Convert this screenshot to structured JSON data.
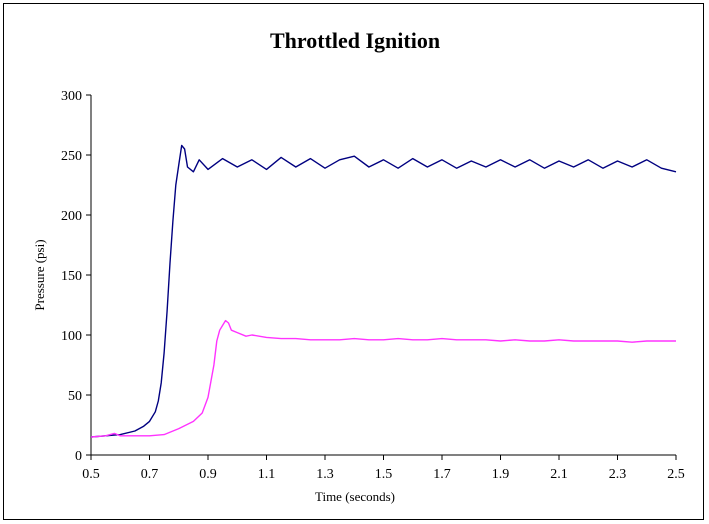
{
  "chart_data": {
    "type": "line",
    "title": "Throttled Ignition",
    "xlabel": "Time (seconds)",
    "ylabel": "Pressure (psi)",
    "xlim": [
      0.5,
      2.5
    ],
    "ylim": [
      0,
      300
    ],
    "xticks": [
      "0.5",
      "0.7",
      "0.9",
      "1.1",
      "1.3",
      "1.5",
      "1.7",
      "1.9",
      "2.1",
      "2.3",
      "2.5"
    ],
    "yticks": [
      "0",
      "50",
      "100",
      "150",
      "200",
      "250",
      "300"
    ],
    "grid": false,
    "legend": "none",
    "series": [
      {
        "color": "#000080",
        "points": [
          [
            0.5,
            15
          ],
          [
            0.55,
            16
          ],
          [
            0.6,
            17
          ],
          [
            0.65,
            20
          ],
          [
            0.68,
            24
          ],
          [
            0.7,
            28
          ],
          [
            0.72,
            36
          ],
          [
            0.73,
            45
          ],
          [
            0.74,
            60
          ],
          [
            0.75,
            85
          ],
          [
            0.76,
            120
          ],
          [
            0.77,
            160
          ],
          [
            0.78,
            195
          ],
          [
            0.79,
            225
          ],
          [
            0.8,
            242
          ],
          [
            0.81,
            258
          ],
          [
            0.82,
            255
          ],
          [
            0.83,
            240
          ],
          [
            0.85,
            236
          ],
          [
            0.87,
            246
          ],
          [
            0.9,
            238
          ],
          [
            0.95,
            247
          ],
          [
            1.0,
            240
          ],
          [
            1.05,
            246
          ],
          [
            1.1,
            238
          ],
          [
            1.15,
            248
          ],
          [
            1.2,
            240
          ],
          [
            1.25,
            247
          ],
          [
            1.3,
            239
          ],
          [
            1.35,
            246
          ],
          [
            1.4,
            249
          ],
          [
            1.45,
            240
          ],
          [
            1.5,
            246
          ],
          [
            1.55,
            239
          ],
          [
            1.6,
            247
          ],
          [
            1.65,
            240
          ],
          [
            1.7,
            246
          ],
          [
            1.75,
            239
          ],
          [
            1.8,
            245
          ],
          [
            1.85,
            240
          ],
          [
            1.9,
            246
          ],
          [
            1.95,
            240
          ],
          [
            2.0,
            246
          ],
          [
            2.05,
            239
          ],
          [
            2.1,
            245
          ],
          [
            2.15,
            240
          ],
          [
            2.2,
            246
          ],
          [
            2.25,
            239
          ],
          [
            2.3,
            245
          ],
          [
            2.35,
            240
          ],
          [
            2.4,
            246
          ],
          [
            2.45,
            239
          ],
          [
            2.5,
            236
          ]
        ]
      },
      {
        "color": "#FF33FF",
        "points": [
          [
            0.5,
            15
          ],
          [
            0.55,
            16
          ],
          [
            0.58,
            18
          ],
          [
            0.6,
            16
          ],
          [
            0.65,
            16
          ],
          [
            0.7,
            16
          ],
          [
            0.75,
            17
          ],
          [
            0.8,
            22
          ],
          [
            0.85,
            28
          ],
          [
            0.88,
            35
          ],
          [
            0.9,
            48
          ],
          [
            0.92,
            75
          ],
          [
            0.93,
            95
          ],
          [
            0.94,
            104
          ],
          [
            0.95,
            108
          ],
          [
            0.96,
            112
          ],
          [
            0.97,
            110
          ],
          [
            0.98,
            104
          ],
          [
            1.0,
            102
          ],
          [
            1.03,
            99
          ],
          [
            1.05,
            100
          ],
          [
            1.1,
            98
          ],
          [
            1.15,
            97
          ],
          [
            1.2,
            97
          ],
          [
            1.25,
            96
          ],
          [
            1.3,
            96
          ],
          [
            1.35,
            96
          ],
          [
            1.4,
            97
          ],
          [
            1.45,
            96
          ],
          [
            1.5,
            96
          ],
          [
            1.55,
            97
          ],
          [
            1.6,
            96
          ],
          [
            1.65,
            96
          ],
          [
            1.7,
            97
          ],
          [
            1.75,
            96
          ],
          [
            1.8,
            96
          ],
          [
            1.85,
            96
          ],
          [
            1.9,
            95
          ],
          [
            1.95,
            96
          ],
          [
            2.0,
            95
          ],
          [
            2.05,
            95
          ],
          [
            2.1,
            96
          ],
          [
            2.15,
            95
          ],
          [
            2.2,
            95
          ],
          [
            2.25,
            95
          ],
          [
            2.3,
            95
          ],
          [
            2.35,
            94
          ],
          [
            2.4,
            95
          ],
          [
            2.45,
            95
          ],
          [
            2.5,
            95
          ]
        ]
      }
    ]
  }
}
